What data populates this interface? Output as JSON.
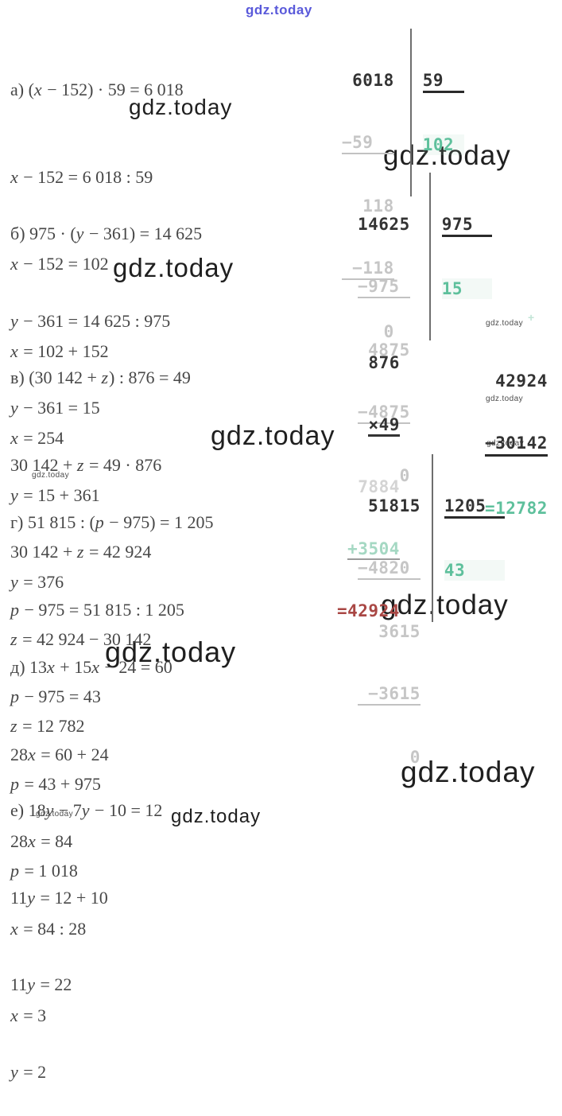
{
  "watermark": {
    "text": "gdz.today",
    "plus_mark": "+",
    "blue_color": "#4343d6",
    "dark_color": "#1f1f1f"
  },
  "colors": {
    "equation_text": "#474747",
    "computation_dark": "#333333",
    "computation_gray": "#c6c6c6",
    "result_green": "#5ec09c",
    "partial_teal": "#a5d8c3",
    "result_red": "#a94744"
  },
  "sections": [
    {
      "label": "a",
      "lines": [
        "а) (x − 152) · 59 = 6 018",
        "x − 152 = 6 018 : 59",
        "x − 152 = 102",
        "x = 102 + 152",
        "x = 254"
      ]
    },
    {
      "label": "b",
      "lines": [
        "б) 975 · (y − 361) = 14 625",
        "y − 361 = 14 625 : 975",
        "y − 361 = 15",
        "y = 15 + 361",
        "y = 376"
      ]
    },
    {
      "label": "v",
      "lines": [
        "в) (30 142 + z) : 876 = 49",
        "30 142 + z = 49 · 876",
        "30 142 + z = 42 924",
        "z = 42 924 − 30 142",
        "z = 12 782"
      ]
    },
    {
      "label": "g",
      "lines": [
        "г) 51 815 : (p − 975) = 1 205",
        "p − 975 = 51 815 : 1 205",
        "p − 975 = 43",
        "p = 43 + 975",
        "p = 1 018"
      ]
    },
    {
      "label": "d",
      "lines": [
        "д) 13x + 15x − 24 = 60",
        "28x = 60 + 24",
        "28x = 84",
        "x = 84 : 28",
        "x = 3"
      ]
    },
    {
      "label": "e",
      "lines": [
        "е) 18y − 7y − 10 = 12",
        "11y = 12 + 10",
        "11y = 22",
        "y = 2"
      ]
    }
  ],
  "computations": {
    "div1": {
      "rows": [
        " 6018",
        "−59  ",
        "  118",
        " −118",
        "    0"
      ],
      "divisor": "59",
      "quotient": "102"
    },
    "div2": {
      "rows": [
        "14625",
        "−975 ",
        " 4875",
        "−4875",
        "    0"
      ],
      "divisor": "975",
      "quotient": "15"
    },
    "mult": {
      "rows": [
        "   876",
        "×49",
        "  7884",
        "+3504",
        "=42924"
      ],
      "pad1": "   ",
      "pad3": " "
    },
    "sub": {
      "rows": [
        " 42924",
        "−30142",
        "=12782"
      ]
    },
    "div3": {
      "rows": [
        " 51815",
        "−4820 ",
        "  3615",
        " −3615",
        "     0"
      ],
      "divisor": "1205",
      "quotient": "43"
    }
  }
}
